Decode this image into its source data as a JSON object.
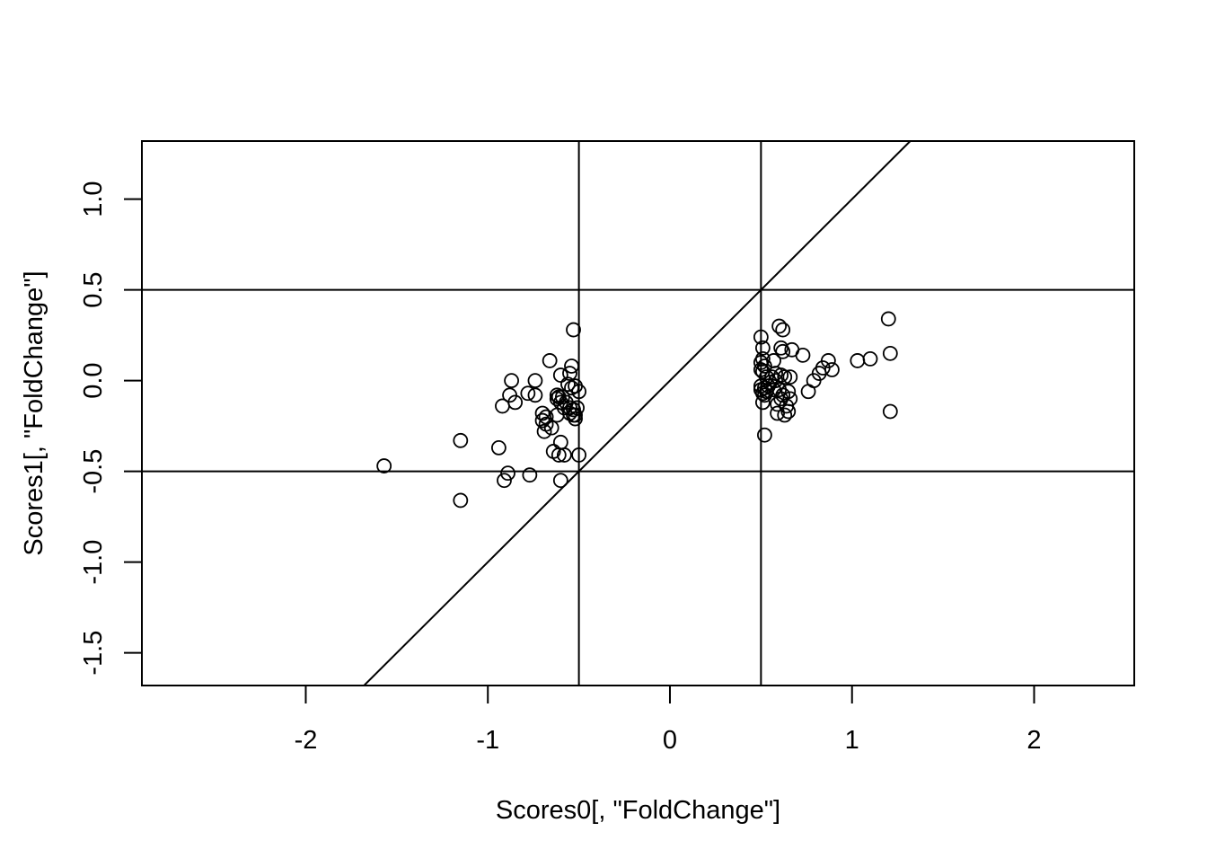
{
  "chart_data": {
    "type": "scatter",
    "title": "",
    "xlabel": "Scores0[, \"FoldChange\"]",
    "ylabel": "Scores1[, \"FoldChange\"]",
    "xlim": [
      -2.9,
      2.55
    ],
    "ylim": [
      -1.68,
      1.32
    ],
    "x_ticks": [
      -2,
      -1,
      0,
      1,
      2
    ],
    "x_tick_labels": [
      "-2",
      "-1",
      "0",
      "1",
      "2"
    ],
    "y_ticks": [
      -1.5,
      -1.0,
      -0.5,
      0.0,
      0.5,
      1.0
    ],
    "y_tick_labels": [
      "-1.5",
      "-1.0",
      "-0.5",
      "0.0",
      "0.5",
      "1.0"
    ],
    "grid": false,
    "legend": "none",
    "marker": "open-circle",
    "colors": {
      "points": "#000000",
      "lines": "#000000"
    },
    "reference_lines": {
      "vertical": [
        -0.5,
        0.5
      ],
      "horizontal": [
        -0.5,
        0.5
      ],
      "abline": {
        "intercept": 0,
        "slope": 1
      }
    },
    "series": [
      {
        "points": [
          [
            -1.57,
            -0.47
          ],
          [
            -1.15,
            -0.33
          ],
          [
            -1.15,
            -0.66
          ],
          [
            -0.94,
            -0.37
          ],
          [
            -0.92,
            -0.14
          ],
          [
            -0.91,
            -0.55
          ],
          [
            -0.89,
            -0.51
          ],
          [
            -0.88,
            -0.08
          ],
          [
            -0.87,
            0.0
          ],
          [
            -0.85,
            -0.12
          ],
          [
            -0.78,
            -0.07
          ],
          [
            -0.77,
            -0.52
          ],
          [
            -0.74,
            -0.08
          ],
          [
            -0.74,
            0.0
          ],
          [
            -0.7,
            -0.18
          ],
          [
            -0.7,
            -0.22
          ],
          [
            -0.69,
            -0.28
          ],
          [
            -0.68,
            -0.2
          ],
          [
            -0.68,
            -0.24
          ],
          [
            -0.66,
            0.11
          ],
          [
            -0.65,
            -0.26
          ],
          [
            -0.64,
            -0.39
          ],
          [
            -0.62,
            -0.08
          ],
          [
            -0.62,
            -0.19
          ],
          [
            -0.62,
            -0.1
          ],
          [
            -0.61,
            -0.09
          ],
          [
            -0.61,
            -0.41
          ],
          [
            -0.6,
            -0.55
          ],
          [
            -0.6,
            -0.12
          ],
          [
            -0.6,
            -0.34
          ],
          [
            -0.6,
            0.03
          ],
          [
            -0.59,
            -0.09
          ],
          [
            -0.58,
            -0.41
          ],
          [
            -0.58,
            -0.15
          ],
          [
            -0.57,
            -0.12
          ],
          [
            -0.56,
            -0.02
          ],
          [
            -0.55,
            -0.18
          ],
          [
            -0.55,
            -0.15
          ],
          [
            -0.55,
            0.04
          ],
          [
            -0.54,
            -0.04
          ],
          [
            -0.54,
            0.08
          ],
          [
            -0.53,
            -0.19
          ],
          [
            -0.53,
            0.28
          ],
          [
            -0.53,
            -0.16
          ],
          [
            -0.52,
            -0.03
          ],
          [
            -0.52,
            -0.21
          ],
          [
            -0.52,
            -0.19
          ],
          [
            -0.51,
            -0.15
          ],
          [
            -0.5,
            -0.06
          ],
          [
            -0.5,
            -0.41
          ],
          [
            0.5,
            0.24
          ],
          [
            0.5,
            0.1
          ],
          [
            0.5,
            -0.03
          ],
          [
            0.5,
            0.06
          ],
          [
            0.5,
            -0.05
          ],
          [
            0.51,
            0.18
          ],
          [
            0.51,
            0.12
          ],
          [
            0.51,
            0.05
          ],
          [
            0.51,
            -0.07
          ],
          [
            0.51,
            -0.12
          ],
          [
            0.52,
            -0.3
          ],
          [
            0.52,
            0.08
          ],
          [
            0.52,
            -0.04
          ],
          [
            0.52,
            -0.08
          ],
          [
            0.53,
            0.02
          ],
          [
            0.53,
            -0.06
          ],
          [
            0.54,
            -0.03
          ],
          [
            0.55,
            -0.01
          ],
          [
            0.56,
            0.02
          ],
          [
            0.57,
            0.11
          ],
          [
            0.57,
            -0.05
          ],
          [
            0.58,
            0.04
          ],
          [
            0.58,
            0.0
          ],
          [
            0.59,
            -0.18
          ],
          [
            0.59,
            -0.13
          ],
          [
            0.6,
            0.3
          ],
          [
            0.6,
            -0.05
          ],
          [
            0.61,
            0.03
          ],
          [
            0.61,
            -0.1
          ],
          [
            0.61,
            0.18
          ],
          [
            0.62,
            0.28
          ],
          [
            0.62,
            0.16
          ],
          [
            0.62,
            -0.08
          ],
          [
            0.63,
            -0.19
          ],
          [
            0.63,
            0.02
          ],
          [
            0.64,
            -0.14
          ],
          [
            0.65,
            -0.17
          ],
          [
            0.65,
            -0.06
          ],
          [
            0.66,
            -0.1
          ],
          [
            0.66,
            0.02
          ],
          [
            0.67,
            0.17
          ],
          [
            0.73,
            0.14
          ],
          [
            0.76,
            -0.06
          ],
          [
            0.79,
            0.0
          ],
          [
            0.82,
            0.04
          ],
          [
            0.84,
            0.07
          ],
          [
            0.87,
            0.11
          ],
          [
            0.89,
            0.06
          ],
          [
            1.03,
            0.11
          ],
          [
            1.1,
            0.12
          ],
          [
            1.2,
            0.34
          ],
          [
            1.21,
            0.15
          ],
          [
            1.21,
            -0.17
          ]
        ]
      }
    ]
  }
}
